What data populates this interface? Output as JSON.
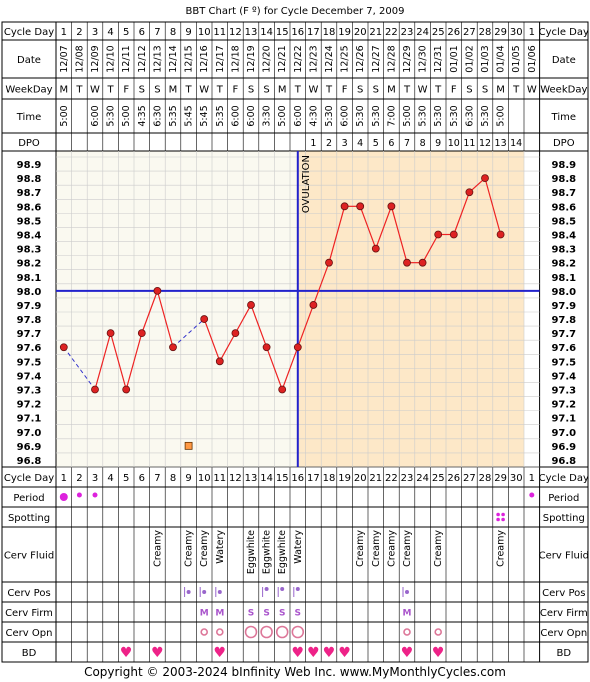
{
  "title": "BBT Chart (F º) for Cycle December 7, 2009",
  "copyright": "Copyright © 2003-2024 bInfinity Web Inc.    www.MyMonthlyCycles.com",
  "labels": {
    "cycle_day": "Cycle Day",
    "date": "Date",
    "weekday": "WeekDay",
    "time": "Time",
    "dpo": "DPO",
    "period": "Period",
    "spotting": "Spotting",
    "cerv_fluid": "Cerv Fluid",
    "cerv_pos": "Cerv Pos",
    "cerv_firm": "Cerv Firm",
    "cerv_opn": "Cerv Opn",
    "bd": "BD",
    "ovulation": "OVULATION"
  },
  "colors": {
    "line": "#ee2222",
    "point": "#dd2222",
    "dotted": "#3333cc",
    "coverline": "#2222cc",
    "luteal_bg": "#fde8c8",
    "follicular_bg": "#faf9f0",
    "period": "#dd22dd",
    "heart": "#ee2288",
    "grid": "#cccccc"
  },
  "chart_data": {
    "type": "line",
    "title": "BBT Chart (F º) for Cycle December 7, 2009",
    "x_label": "Cycle Day",
    "y_label": "",
    "ylim": [
      96.8,
      98.9
    ],
    "ovulation_day": 16,
    "coverline": 98.0,
    "cycle_days": [
      "1",
      "2",
      "3",
      "4",
      "5",
      "6",
      "7",
      "8",
      "9",
      "10",
      "11",
      "12",
      "13",
      "14",
      "15",
      "16",
      "17",
      "18",
      "19",
      "20",
      "21",
      "22",
      "23",
      "24",
      "25",
      "26",
      "27",
      "28",
      "29",
      "30",
      "1"
    ],
    "dates": [
      "12/07",
      "12/08",
      "12/09",
      "12/10",
      "12/11",
      "12/12",
      "12/13",
      "12/14",
      "12/15",
      "12/16",
      "12/17",
      "12/18",
      "12/19",
      "12/20",
      "12/21",
      "12/22",
      "12/23",
      "12/24",
      "12/25",
      "12/26",
      "12/27",
      "12/28",
      "12/29",
      "12/30",
      "12/31",
      "01/01",
      "01/02",
      "01/03",
      "01/04",
      "01/05",
      "01/06"
    ],
    "weekdays": [
      "M",
      "T",
      "W",
      "T",
      "F",
      "S",
      "S",
      "M",
      "T",
      "W",
      "T",
      "F",
      "S",
      "S",
      "M",
      "T",
      "W",
      "T",
      "F",
      "S",
      "S",
      "M",
      "T",
      "W",
      "T",
      "F",
      "S",
      "S",
      "M",
      "T",
      "W"
    ],
    "times": [
      "5:00",
      "",
      "6:00",
      "5:30",
      "5:00",
      "4:35",
      "6:30",
      "5:35",
      "5:45",
      "5:45",
      "5:35",
      "6:00",
      "6:00",
      "3:30",
      "5:00",
      "6:00",
      "4:30",
      "5:30",
      "6:00",
      "5:30",
      "5:30",
      "7:00",
      "5:00",
      "5:30",
      "5:30",
      "5:30",
      "6:30",
      "5:30",
      "5:00",
      "",
      ""
    ],
    "dpo": [
      "",
      "",
      "",
      "",
      "",
      "",
      "",
      "",
      "",
      "",
      "",
      "",
      "",
      "",
      "",
      "",
      "1",
      "2",
      "3",
      "4",
      "5",
      "6",
      "7",
      "8",
      "9",
      "10",
      "11",
      "12",
      "13",
      "14",
      ""
    ],
    "y_ticks": [
      "98.9",
      "98.8",
      "98.7",
      "98.6",
      "98.5",
      "98.4",
      "98.3",
      "98.2",
      "98.1",
      "98.0",
      "97.9",
      "97.8",
      "97.7",
      "97.6",
      "97.5",
      "97.4",
      "97.3",
      "97.2",
      "97.1",
      "97.0",
      "96.9",
      "96.8"
    ],
    "temps": [
      97.6,
      null,
      97.3,
      97.7,
      97.3,
      97.7,
      98.0,
      97.6,
      null,
      97.8,
      97.5,
      97.7,
      97.9,
      97.6,
      97.3,
      97.6,
      97.9,
      98.2,
      98.6,
      98.6,
      98.3,
      98.6,
      98.2,
      98.2,
      98.4,
      98.4,
      98.7,
      98.8,
      98.4,
      null,
      null
    ],
    "discarded": [
      {
        "day": 9,
        "temp": 96.9
      }
    ],
    "period": [
      "large",
      "small",
      "small",
      "",
      "",
      "",
      "",
      "",
      "",
      "",
      "",
      "",
      "",
      "",
      "",
      "",
      "",
      "",
      "",
      "",
      "",
      "",
      "",
      "",
      "",
      "",
      "",
      "",
      "",
      "",
      "small"
    ],
    "spotting": [
      false,
      false,
      false,
      false,
      false,
      false,
      false,
      false,
      false,
      false,
      false,
      false,
      false,
      false,
      false,
      false,
      false,
      false,
      false,
      false,
      false,
      false,
      false,
      false,
      false,
      false,
      false,
      false,
      true,
      false,
      false
    ],
    "cerv_fluid": [
      "",
      "",
      "",
      "",
      "",
      "",
      "Creamy",
      "",
      "Creamy",
      "Creamy",
      "Watery",
      "",
      "Eggwhite",
      "Eggwhite",
      "Eggwhite",
      "Watery",
      "",
      "",
      "",
      "Creamy",
      "Creamy",
      "Creamy",
      "Creamy",
      "",
      "Creamy",
      "",
      "",
      "",
      "Creamy",
      "",
      ""
    ],
    "cerv_pos": [
      "",
      "",
      "",
      "",
      "",
      "",
      "",
      "",
      "mid",
      "mid",
      "mid",
      "",
      "",
      "high",
      "high",
      "high",
      "",
      "",
      "",
      "",
      "",
      "",
      "mid",
      "",
      "",
      "",
      "",
      "",
      "",
      "",
      ""
    ],
    "cerv_firm": [
      "",
      "",
      "",
      "",
      "",
      "",
      "",
      "",
      "",
      "M",
      "M",
      "",
      "S",
      "S",
      "S",
      "S",
      "",
      "",
      "",
      "",
      "",
      "",
      "M",
      "",
      "",
      "",
      "",
      "",
      "",
      "",
      ""
    ],
    "cerv_opn": [
      "",
      "",
      "",
      "",
      "",
      "",
      "",
      "",
      "",
      "small",
      "small",
      "",
      "large",
      "large",
      "large",
      "large",
      "",
      "",
      "",
      "",
      "",
      "",
      "small",
      "",
      "small",
      "",
      "",
      "",
      "",
      "",
      ""
    ],
    "bd": [
      false,
      false,
      false,
      false,
      true,
      false,
      true,
      false,
      false,
      false,
      true,
      false,
      false,
      false,
      false,
      true,
      true,
      true,
      true,
      false,
      false,
      false,
      true,
      false,
      true,
      false,
      false,
      false,
      false,
      false,
      false
    ]
  }
}
